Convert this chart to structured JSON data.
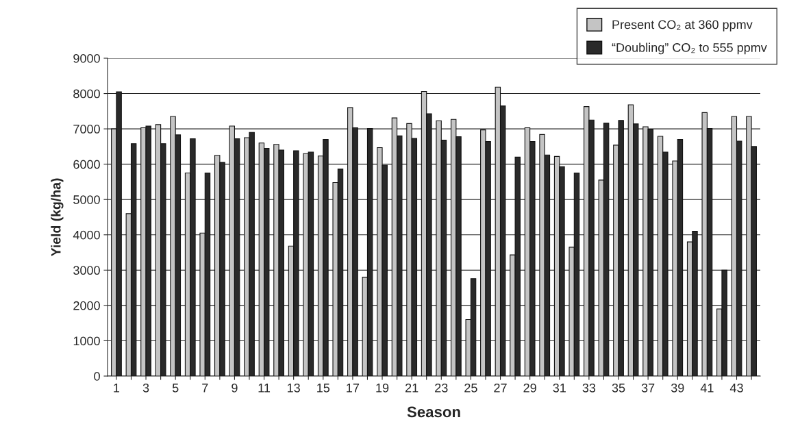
{
  "chart_data": {
    "type": "bar",
    "xlabel": "Season",
    "ylabel": "Yield (kg/ha)",
    "categories": [
      "1",
      null,
      "3",
      null,
      "5",
      null,
      "7",
      null,
      "9",
      null,
      "11",
      null,
      "13",
      null,
      "15",
      null,
      "17",
      null,
      "19",
      null,
      "21",
      null,
      "23",
      null,
      "25",
      null,
      "27",
      null,
      "29",
      null,
      "31",
      null,
      "33",
      null,
      "35",
      null,
      "37",
      null,
      "39",
      null,
      "41",
      null,
      "43",
      null
    ],
    "series": [
      {
        "name": "Present CO₂ at 360 ppmv",
        "color": "#c4c4c4",
        "values": [
          7000,
          4600,
          7030,
          7120,
          7350,
          5750,
          4050,
          6250,
          7080,
          6750,
          6600,
          6560,
          3680,
          6300,
          6230,
          5480,
          7600,
          2800,
          6470,
          7310,
          7150,
          8060,
          7230,
          7270,
          1600,
          6970,
          8180,
          3430,
          7030,
          6840,
          6220,
          3650,
          7630,
          5550,
          6540,
          7680,
          7060,
          6790,
          6090,
          3800,
          7460,
          1900,
          7350,
          7350
        ]
      },
      {
        "name": "“Doubling” CO₂ to 555 ppmv",
        "color": "#2a2a2a",
        "values": [
          8050,
          6580,
          7080,
          6580,
          6830,
          6720,
          5750,
          6050,
          6720,
          6900,
          6450,
          6400,
          6380,
          6340,
          6700,
          5860,
          7030,
          7010,
          5970,
          6800,
          6730,
          7430,
          6680,
          6780,
          2760,
          6640,
          7650,
          6200,
          6640,
          6260,
          5930,
          5750,
          7250,
          7160,
          7240,
          7140,
          6990,
          6340,
          6700,
          4100,
          7010,
          3000,
          6650,
          6500
        ]
      }
    ],
    "ylim": [
      0,
      9000
    ],
    "yticks": [
      0,
      1000,
      2000,
      3000,
      4000,
      5000,
      6000,
      7000,
      8000,
      9000
    ],
    "grid": "y",
    "legend": "top right"
  }
}
